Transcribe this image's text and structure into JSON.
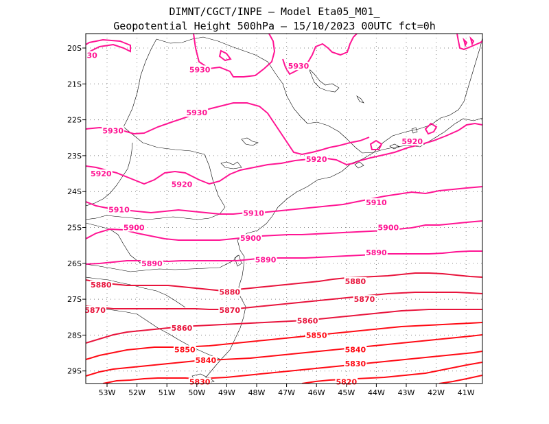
{
  "header": {
    "line1": "DIMNT/CGCT/INPE –  Model Eta05_M01_",
    "line2": "Geopotential Height 500hPa –  15/10/2023 00UTC fct=0h"
  },
  "axes": {
    "lon_labels": [
      "53W",
      "52W",
      "51W",
      "50W",
      "49W",
      "48W",
      "47W",
      "46W",
      "45W",
      "44W",
      "43W",
      "42W",
      "41W"
    ],
    "lat_labels": [
      "20S",
      "21S",
      "22S",
      "23S",
      "24S",
      "25S",
      "26S",
      "27S",
      "28S",
      "29S"
    ]
  },
  "colors": {
    "magenta": "#ff1493",
    "crimson": "#e8143c",
    "red": "#ff0a14"
  },
  "chart_data": {
    "type": "contour",
    "variable": "Geopotential Height 500hPa",
    "lon_range": [
      -53.6,
      -40.5
    ],
    "lat_range": [
      -29.4,
      -19.6
    ],
    "grid": true,
    "contour_labels": [
      {
        "text": "30",
        "lon": -53.5,
        "lat": -20.2
      },
      {
        "text": "5930",
        "lon": -49.9,
        "lat": -20.6
      },
      {
        "text": "5930",
        "lon": -46.6,
        "lat": -20.5
      },
      {
        "text": "5930",
        "lon": -50.0,
        "lat": -21.8
      },
      {
        "text": "5930",
        "lon": -52.8,
        "lat": -22.3
      },
      {
        "text": "5920",
        "lon": -42.8,
        "lat": -22.6
      },
      {
        "text": "5920",
        "lon": -53.2,
        "lat": -23.5
      },
      {
        "text": "5920",
        "lon": -46.0,
        "lat": -23.1
      },
      {
        "text": "5920",
        "lon": -50.5,
        "lat": -23.8
      },
      {
        "text": "5910",
        "lon": -44.0,
        "lat": -24.3
      },
      {
        "text": "5910",
        "lon": -52.6,
        "lat": -24.5
      },
      {
        "text": "5910",
        "lon": -48.1,
        "lat": -24.6
      },
      {
        "text": "5900",
        "lon": -52.1,
        "lat": -25.0
      },
      {
        "text": "5900",
        "lon": -43.6,
        "lat": -25.0
      },
      {
        "text": "5900",
        "lon": -48.2,
        "lat": -25.3
      },
      {
        "text": "5890",
        "lon": -44.0,
        "lat": -25.7
      },
      {
        "text": "5890",
        "lon": -51.5,
        "lat": -26.0
      },
      {
        "text": "5890",
        "lon": -47.7,
        "lat": -25.9
      },
      {
        "text": "5880",
        "lon": -53.2,
        "lat": -26.6
      },
      {
        "text": "5880",
        "lon": -44.7,
        "lat": -26.5
      },
      {
        "text": "5880",
        "lon": -48.9,
        "lat": -26.8
      },
      {
        "text": "5870",
        "lon": -44.4,
        "lat": -27.0
      },
      {
        "text": "5870",
        "lon": -53.4,
        "lat": -27.3
      },
      {
        "text": "5870",
        "lon": -48.9,
        "lat": -27.3
      },
      {
        "text": "5860",
        "lon": -46.3,
        "lat": -27.6
      },
      {
        "text": "5860",
        "lon": -50.5,
        "lat": -27.8
      },
      {
        "text": "5850",
        "lon": -46.0,
        "lat": -28.0
      },
      {
        "text": "5850",
        "lon": -50.4,
        "lat": -28.4
      },
      {
        "text": "5840",
        "lon": -44.7,
        "lat": -28.4
      },
      {
        "text": "5840",
        "lon": -49.7,
        "lat": -28.7
      },
      {
        "text": "5830",
        "lon": -44.7,
        "lat": -28.8
      },
      {
        "text": "5830",
        "lon": -49.9,
        "lat": -29.3
      },
      {
        "text": "5820",
        "lon": -45.0,
        "lat": -29.3
      }
    ]
  }
}
